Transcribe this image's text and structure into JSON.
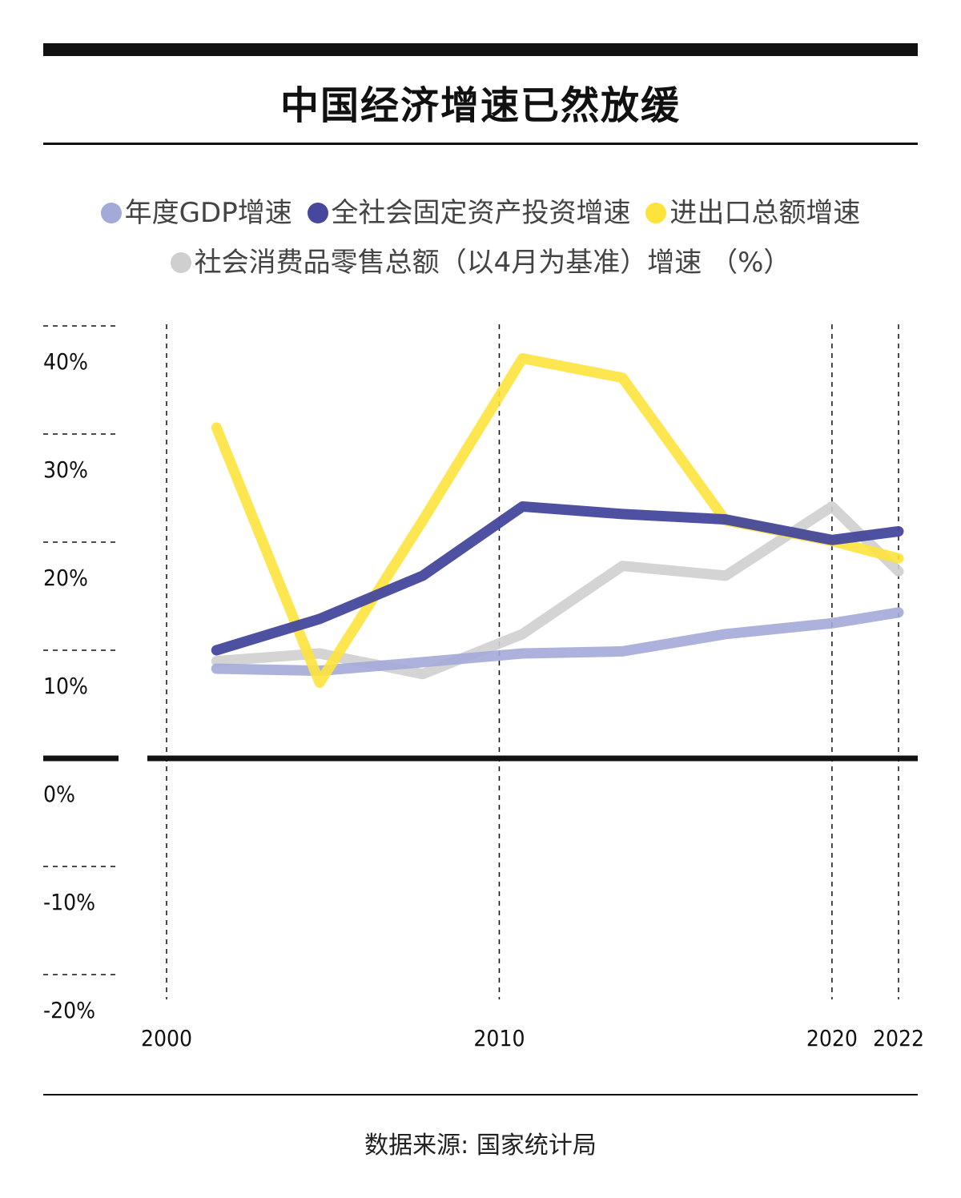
{
  "title": "中国经济增速已然放缓",
  "legend": {
    "row1": [
      {
        "label": "年度GDP增速",
        "color": "#a4aad8"
      },
      {
        "label": "全社会固定资产投资增速",
        "color": "#45489c"
      },
      {
        "label": "进出口总额增速",
        "color": "#fde33c"
      }
    ],
    "row2": [
      {
        "label": "社会消费品零售总额（以4月为基准）增速 （%）",
        "color": "#cfcfcf"
      }
    ]
  },
  "source": "数据来源: 国家统计局",
  "chart_data": {
    "type": "line",
    "ylim": [
      -20,
      40
    ],
    "y_ticks": [
      {
        "value": 40,
        "label": "40%"
      },
      {
        "value": 30,
        "label": "30%"
      },
      {
        "value": 20,
        "label": "20%"
      },
      {
        "value": 10,
        "label": "10%"
      },
      {
        "value": 0,
        "label": "0%"
      },
      {
        "value": -10,
        "label": "-10%"
      },
      {
        "value": -20,
        "label": "-20%"
      }
    ],
    "xlim": [
      2000,
      2022
    ],
    "x_ticks": [
      {
        "value": 2000,
        "label": "2000"
      },
      {
        "value": 2010,
        "label": "2010"
      },
      {
        "value": 2020,
        "label": "2020"
      },
      {
        "value": 2022,
        "label": "2022"
      }
    ],
    "x": [
      2001.5,
      2004.6,
      2007.7,
      2010.7,
      2013.7,
      2016.8,
      2020,
      2022
    ],
    "series": [
      {
        "name": "社会消费品零售总额（以4月为基准）增速",
        "color": "#cfcfcf",
        "values": [
          9.0,
          9.7,
          7.8,
          11.5,
          17.8,
          16.9,
          23.3,
          17.3
        ]
      },
      {
        "name": "年度GDP增速",
        "color": "#a4aad8",
        "values": [
          8.3,
          8.1,
          8.9,
          9.7,
          9.9,
          11.5,
          12.5,
          13.5
        ]
      },
      {
        "name": "进出口总额增速",
        "color": "#fde33c",
        "values": [
          30.6,
          7.0,
          22.0,
          37.0,
          35.2,
          22.0,
          20.1,
          18.5
        ]
      },
      {
        "name": "全社会固定资产投资增速",
        "color": "#45489c",
        "values": [
          10.0,
          12.9,
          16.9,
          23.3,
          22.6,
          22.1,
          20.2,
          21.0
        ]
      }
    ]
  }
}
